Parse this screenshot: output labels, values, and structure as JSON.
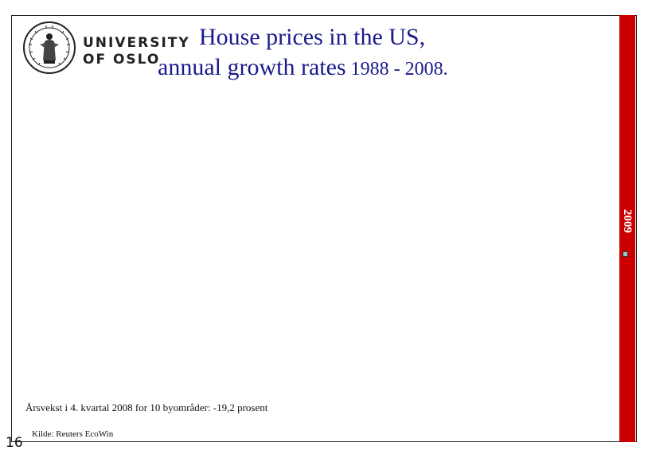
{
  "logo": {
    "line1": "UNIVERSITY",
    "line2": "OF OSLO"
  },
  "title": {
    "line1": "House prices in the US,",
    "line2": "annual growth rates",
    "years": " 1988 -  2008."
  },
  "sidebar": {
    "year": "2009",
    "color": "#cc0000"
  },
  "note": "Årsvekst i 4. kvartal 2008 for 10 byområder: -19,2 prosent",
  "source": "Kilde: Reuters EcoWin",
  "page_number": "16"
}
